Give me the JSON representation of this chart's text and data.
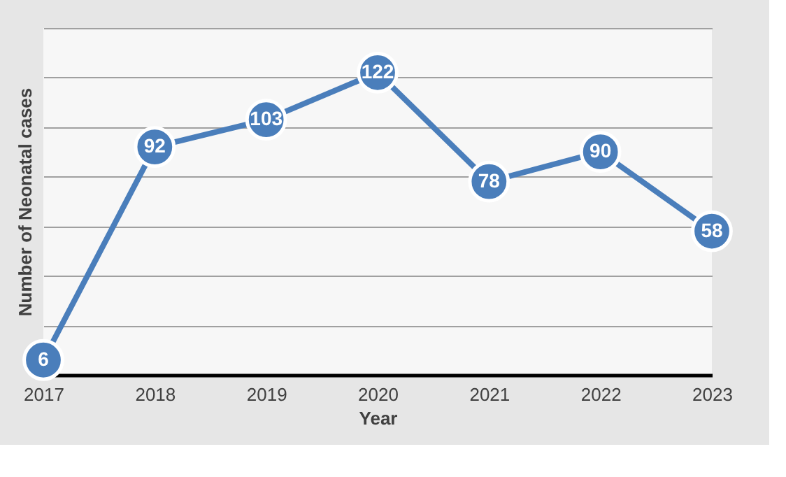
{
  "chart_data": {
    "type": "line",
    "xlabel": "Year",
    "ylabel": "Number of Neonatal cases",
    "categories": [
      "2017",
      "2018",
      "2019",
      "2020",
      "2021",
      "2022",
      "2023"
    ],
    "series": [
      {
        "color": "#4a7ebb",
        "values": [
          6,
          92,
          103,
          122,
          78,
          90,
          58
        ]
      }
    ],
    "ylim": [
      0,
      140
    ],
    "yticks": [
      {
        "value": 0,
        "label": null
      },
      {
        "value": 20,
        "label": null
      },
      {
        "value": 40,
        "label": null
      },
      {
        "value": 60,
        "label": null
      },
      {
        "value": 80,
        "label": null
      },
      {
        "value": 100,
        "label": null
      },
      {
        "value": 120,
        "label": null
      },
      {
        "value": 140,
        "label": null
      }
    ],
    "tick_labels": "x",
    "grid": "y",
    "marker": "circle",
    "line_style": "solid",
    "data_labels": true,
    "legend": false
  }
}
